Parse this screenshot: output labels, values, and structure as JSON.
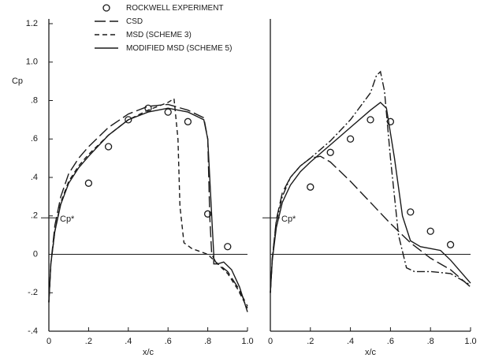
{
  "chart_data": [
    {
      "type": "line",
      "ylabel": "Cp",
      "xlabel": "x/c",
      "xlim": [
        0,
        1
      ],
      "ylim": [
        -0.4,
        1.2
      ],
      "xticks": [
        0,
        {
          "value": 0.2,
          "label": ".2"
        },
        {
          "value": 0.4,
          "label": ".4"
        },
        {
          "value": 0.6,
          "label": ".6"
        },
        {
          "value": 0.8,
          "label": ".8"
        },
        {
          "value": 1,
          "label": "1.0"
        }
      ],
      "yticks": [
        {
          "value": -0.4,
          "label": "-.4"
        },
        {
          "value": -0.2,
          "label": "-.2"
        },
        0,
        {
          "value": 0.2,
          "label": ".2"
        },
        {
          "value": 0.4,
          "label": ".4"
        },
        {
          "value": 0.6,
          "label": ".6"
        },
        {
          "value": 0.8,
          "label": ".8"
        },
        {
          "value": 1,
          "label": "1.0"
        },
        {
          "value": 1.2,
          "label": "1.2"
        }
      ],
      "legend": "upper-center",
      "annotations": [
        {
          "text": "Cp*",
          "y": 0.19
        }
      ],
      "series": [
        {
          "name": "ROCKWELL EXPERIMENT",
          "type": "scatter",
          "color": "#1a1a1a",
          "x": [
            0.2,
            0.3,
            0.4,
            0.5,
            0.6,
            0.7,
            0.8,
            0.9
          ],
          "values": [
            0.37,
            0.56,
            0.7,
            0.76,
            0.74,
            0.69,
            0.21,
            0.04
          ]
        },
        {
          "name": "CSD",
          "type": "line",
          "dash": "long",
          "color": "#1a1a1a",
          "x": [
            0,
            0.01,
            0.03,
            0.06,
            0.1,
            0.15,
            0.2,
            0.3,
            0.4,
            0.5,
            0.6,
            0.7,
            0.78,
            0.8,
            0.81,
            0.82,
            0.84,
            0.9,
            0.95,
            1.0
          ],
          "values": [
            -0.25,
            -0.05,
            0.15,
            0.3,
            0.42,
            0.5,
            0.56,
            0.66,
            0.73,
            0.77,
            0.78,
            0.75,
            0.71,
            0.6,
            0.2,
            0,
            -0.04,
            -0.09,
            -0.17,
            -0.27
          ]
        },
        {
          "name": "MSD (SCHEME 3)",
          "type": "line",
          "dash": "short",
          "color": "#1a1a1a",
          "x": [
            0,
            0.01,
            0.03,
            0.06,
            0.1,
            0.15,
            0.2,
            0.3,
            0.4,
            0.5,
            0.6,
            0.63,
            0.65,
            0.66,
            0.68,
            0.72,
            0.8,
            0.82,
            0.85,
            0.9,
            0.95,
            1.0
          ],
          "values": [
            -0.25,
            -0.05,
            0.12,
            0.27,
            0.38,
            0.46,
            0.52,
            0.62,
            0.7,
            0.75,
            0.79,
            0.81,
            0.6,
            0.25,
            0.06,
            0.03,
            0,
            -0.02,
            -0.05,
            -0.1,
            -0.18,
            -0.28
          ]
        },
        {
          "name": "MODIFIED MSD (SCHEME 5)",
          "type": "line",
          "dash": "solid",
          "color": "#1a1a1a",
          "x": [
            0,
            0.01,
            0.03,
            0.06,
            0.1,
            0.15,
            0.2,
            0.3,
            0.4,
            0.5,
            0.6,
            0.7,
            0.78,
            0.8,
            0.82,
            0.83,
            0.83,
            0.85,
            0.88,
            0.92,
            0.96,
            1.0
          ],
          "values": [
            -0.25,
            -0.05,
            0.12,
            0.26,
            0.37,
            0.45,
            0.51,
            0.62,
            0.7,
            0.74,
            0.76,
            0.74,
            0.7,
            0.6,
            0.2,
            0,
            -0.05,
            -0.05,
            -0.04,
            -0.08,
            -0.17,
            -0.3
          ]
        }
      ]
    },
    {
      "type": "line",
      "xlabel": "x/c",
      "xlim": [
        0,
        1
      ],
      "ylim": [
        -0.4,
        1.2
      ],
      "xticks": [
        0,
        {
          "value": 0.2,
          "label": ".2"
        },
        {
          "value": 0.4,
          "label": ".4"
        },
        {
          "value": 0.6,
          "label": ".6"
        },
        {
          "value": 0.8,
          "label": ".8"
        },
        {
          "value": 1,
          "label": "1.0"
        }
      ],
      "annotations": [
        {
          "text": "Cp*",
          "y": 0.19
        }
      ],
      "series": [
        {
          "type": "scatter",
          "color": "#1a1a1a",
          "x": [
            0.2,
            0.3,
            0.4,
            0.5,
            0.6,
            0.7,
            0.8,
            0.9
          ],
          "values": [
            0.35,
            0.53,
            0.6,
            0.7,
            0.69,
            0.22,
            0.12,
            0.05
          ]
        },
        {
          "type": "line",
          "dash": "long",
          "color": "#1a1a1a",
          "x": [
            0,
            0.01,
            0.03,
            0.06,
            0.1,
            0.15,
            0.2,
            0.25,
            0.3,
            0.4,
            0.5,
            0.6,
            0.7,
            0.8,
            0.9,
            1.0
          ],
          "values": [
            -0.2,
            -0.02,
            0.18,
            0.32,
            0.4,
            0.46,
            0.5,
            0.51,
            0.48,
            0.38,
            0.27,
            0.16,
            0.06,
            -0.02,
            -0.08,
            -0.17
          ]
        },
        {
          "type": "line",
          "dash": "dashdot",
          "color": "#1a1a1a",
          "x": [
            0,
            0.01,
            0.03,
            0.06,
            0.1,
            0.15,
            0.2,
            0.3,
            0.4,
            0.5,
            0.53,
            0.55,
            0.57,
            0.6,
            0.64,
            0.68,
            0.72,
            0.8,
            0.9,
            1.0
          ],
          "values": [
            -0.2,
            -0.02,
            0.17,
            0.3,
            0.4,
            0.46,
            0.5,
            0.59,
            0.7,
            0.84,
            0.93,
            0.95,
            0.85,
            0.5,
            0.1,
            -0.07,
            -0.09,
            -0.09,
            -0.1,
            -0.16
          ]
        },
        {
          "type": "line",
          "dash": "solid",
          "color": "#1a1a1a",
          "x": [
            0,
            0.01,
            0.03,
            0.06,
            0.1,
            0.15,
            0.2,
            0.3,
            0.4,
            0.5,
            0.55,
            0.58,
            0.62,
            0.66,
            0.7,
            0.75,
            0.8,
            0.85,
            0.9,
            0.95,
            1.0
          ],
          "values": [
            -0.2,
            -0.03,
            0.14,
            0.27,
            0.36,
            0.43,
            0.48,
            0.57,
            0.66,
            0.75,
            0.79,
            0.76,
            0.5,
            0.2,
            0.07,
            0.04,
            0.03,
            0.02,
            -0.03,
            -0.09,
            -0.15
          ]
        }
      ]
    }
  ]
}
